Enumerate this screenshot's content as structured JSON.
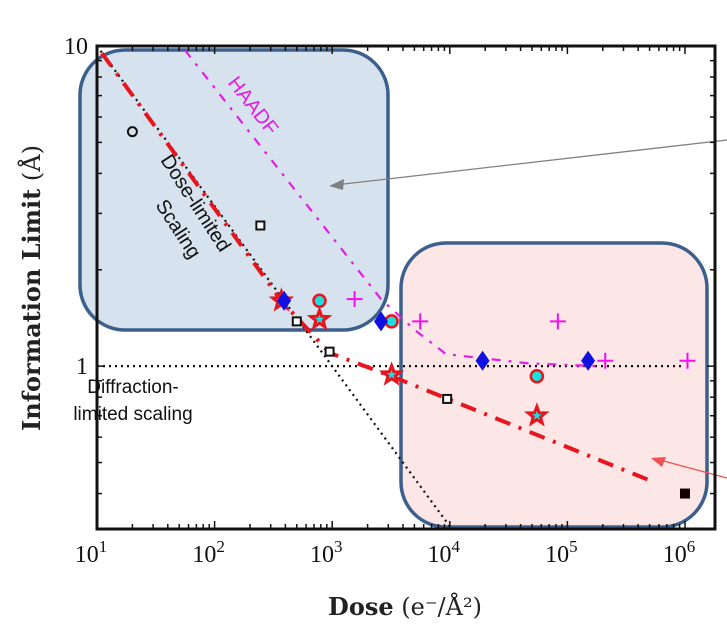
{
  "chart_data": {
    "type": "scatter",
    "title": "",
    "xlabel": "Dose",
    "xlabel_units": "(e⁻/Å²)",
    "ylabel": "Information Limit",
    "ylabel_units": "(Å)",
    "xscale": "log",
    "yscale": "log",
    "xlim": [
      10,
      1800000
    ],
    "ylim": [
      0.31,
      10
    ],
    "xticks": [
      {
        "base": "10",
        "exp": "1",
        "value": 10
      },
      {
        "base": "10",
        "exp": "2",
        "value": 100
      },
      {
        "base": "10",
        "exp": "3",
        "value": 1000
      },
      {
        "base": "10",
        "exp": "4",
        "value": 10000
      },
      {
        "base": "10",
        "exp": "5",
        "value": 100000
      },
      {
        "base": "10",
        "exp": "6",
        "value": 1000000
      }
    ],
    "yticks": [
      {
        "label": "1",
        "value": 1
      },
      {
        "label": "10",
        "value": 10
      }
    ],
    "grid": false,
    "annotations": {
      "haadf": "HAADF",
      "dose_limited_1": "Dose-limited",
      "dose_limited_2": "Scaling",
      "diffraction_1": "Diffraction-",
      "diffraction_2": "limited scaling"
    },
    "lines": [
      {
        "name": "dose-limited scaling",
        "style": "dotted",
        "color": "#111111",
        "points": [
          [
            10,
            10
          ],
          [
            10000,
            0.316
          ]
        ]
      },
      {
        "name": "diffraction-limited scaling",
        "style": "dotted",
        "color": "#111111",
        "points": [
          [
            10,
            1
          ],
          [
            950000,
            1
          ]
        ]
      },
      {
        "name": "HAADF trend",
        "style": "dash-dot",
        "color": "#e020e0",
        "points": [
          [
            56,
            9.7
          ],
          [
            2600,
            1.62
          ],
          [
            5000,
            1.3
          ],
          [
            9300,
            1.09
          ],
          [
            47000,
            1.02
          ],
          [
            180000,
            1.0
          ]
        ]
      },
      {
        "name": "red trend",
        "style": "dash-dot",
        "color": "#e8141e",
        "points": [
          [
            11,
            9.5
          ],
          [
            370,
            1.6
          ],
          [
            950,
            1.1
          ],
          [
            3200,
            0.93
          ],
          [
            500000,
            0.44
          ]
        ]
      }
    ],
    "series": [
      {
        "name": "open circle",
        "marker": "open-circle",
        "color": "#111111",
        "points": [
          [
            20,
            5.4
          ]
        ]
      },
      {
        "name": "open square",
        "marker": "open-square",
        "color": "#111111",
        "points": [
          [
            245,
            2.75
          ],
          [
            500,
            1.38
          ],
          [
            950,
            1.11
          ],
          [
            9500,
            0.79
          ]
        ]
      },
      {
        "name": "filled square",
        "marker": "filled-square",
        "color": "#140000",
        "points": [
          [
            1000000,
            0.4
          ]
        ]
      },
      {
        "name": "star",
        "marker": "star",
        "color": "#e8141e",
        "points": [
          [
            370,
            1.6
          ],
          [
            780,
            1.4
          ],
          [
            3200,
            0.94
          ],
          [
            55000,
            0.7
          ]
        ]
      },
      {
        "name": "cyan circle",
        "marker": "cyan-circle",
        "color": "#18e0e0",
        "points": [
          [
            780,
            1.6
          ],
          [
            3200,
            1.38
          ],
          [
            55000,
            0.93
          ]
        ]
      },
      {
        "name": "diamond",
        "marker": "diamond",
        "color": "#1010e0",
        "points": [
          [
            390,
            1.6
          ],
          [
            2600,
            1.38
          ],
          [
            19000,
            1.04
          ],
          [
            150000,
            1.04
          ]
        ]
      },
      {
        "name": "plus",
        "marker": "plus",
        "color": "#f010f0",
        "points": [
          [
            1550,
            1.62
          ],
          [
            5600,
            1.38
          ],
          [
            83000,
            1.38
          ],
          [
            210000,
            1.04
          ],
          [
            1050000,
            1.04
          ]
        ]
      }
    ]
  }
}
